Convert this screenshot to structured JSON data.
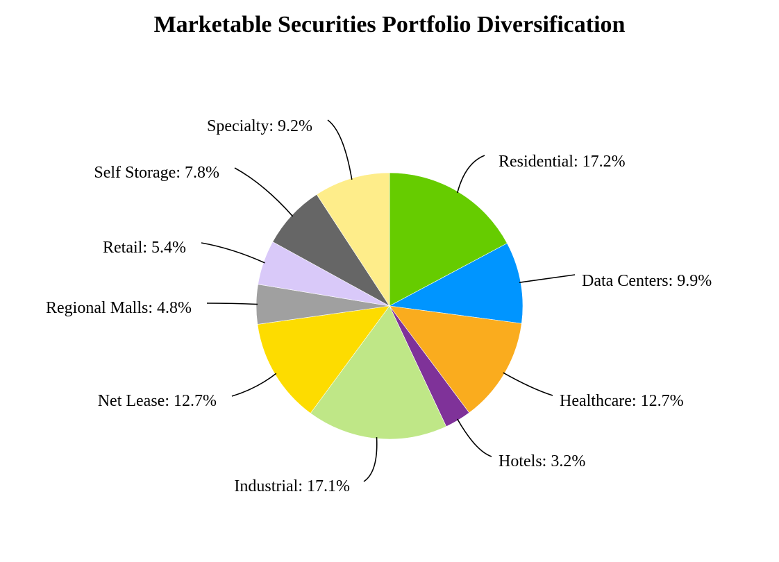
{
  "chart_data": {
    "type": "pie",
    "title": "Marketable Securities Portfolio Diversification",
    "start": "12 o'clock",
    "direction": "clockwise",
    "slices": [
      {
        "label": "Residential: 17.2%",
        "name": "Residential",
        "value": 17.2,
        "color": "#66cc00"
      },
      {
        "label": "Data Centers: 9.9%",
        "name": "Data Centers",
        "value": 9.9,
        "color": "#0095ff"
      },
      {
        "label": "Healthcare: 12.7%",
        "name": "Healthcare",
        "value": 12.7,
        "color": "#faac1e"
      },
      {
        "label": "Hotels: 3.2%",
        "name": "Hotels",
        "value": 3.2,
        "color": "#7f3299"
      },
      {
        "label": "Industrial: 17.1%",
        "name": "Industrial",
        "value": 17.1,
        "color": "#bfe787"
      },
      {
        "label": "Net Lease: 12.7%",
        "name": "Net Lease",
        "value": 12.7,
        "color": "#fddc00"
      },
      {
        "label": "Regional Malls: 4.8%",
        "name": "Regional Malls",
        "value": 4.8,
        "color": "#a0a0a0"
      },
      {
        "label": "Retail: 5.4%",
        "name": "Retail",
        "value": 5.4,
        "color": "#d9c9f9"
      },
      {
        "label": "Self Storage: 7.8%",
        "name": "Self Storage",
        "value": 7.8,
        "color": "#666666"
      },
      {
        "label": "Specialty: 9.2%",
        "name": "Specialty",
        "value": 9.2,
        "color": "#feed8a"
      }
    ]
  }
}
